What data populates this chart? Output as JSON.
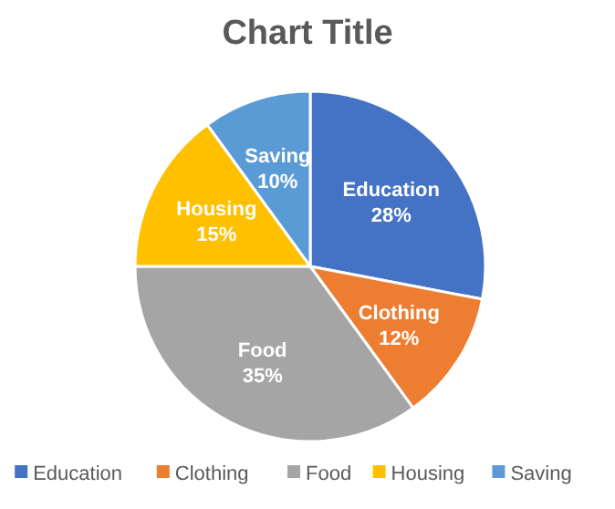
{
  "chart_data": {
    "type": "pie",
    "title": "Chart Title",
    "categories": [
      "Education",
      "Clothing",
      "Food",
      "Housing",
      "Saving"
    ],
    "values": [
      28,
      12,
      35,
      15,
      10
    ],
    "colors": [
      "#4472c4",
      "#ed7d31",
      "#a5a5a5",
      "#ffc000",
      "#5b9bd5"
    ],
    "value_labels": [
      "28%",
      "12%",
      "35%",
      "15%",
      "10%"
    ],
    "legend": "bottom"
  }
}
